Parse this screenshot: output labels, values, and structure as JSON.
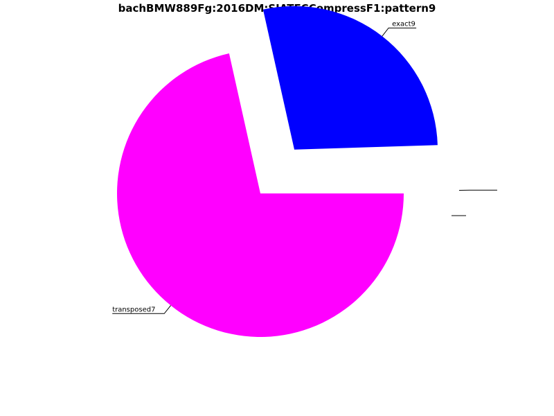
{
  "chart_data": {
    "type": "pie",
    "title": "bachBMW889Fg:2016DM:SIATECCompressF1:pattern9",
    "slices": [
      {
        "label": "transposed7",
        "value": 71.5,
        "color": "#ff00ff",
        "exploded": false
      },
      {
        "label": "exact9",
        "value": 28.0,
        "color": "#0000ff",
        "exploded": true
      },
      {
        "label": "",
        "value": 0.5,
        "color": "#ffffff",
        "exploded": true
      }
    ],
    "start": "3 o'clock",
    "direction": "clockwise",
    "legend": "none"
  }
}
